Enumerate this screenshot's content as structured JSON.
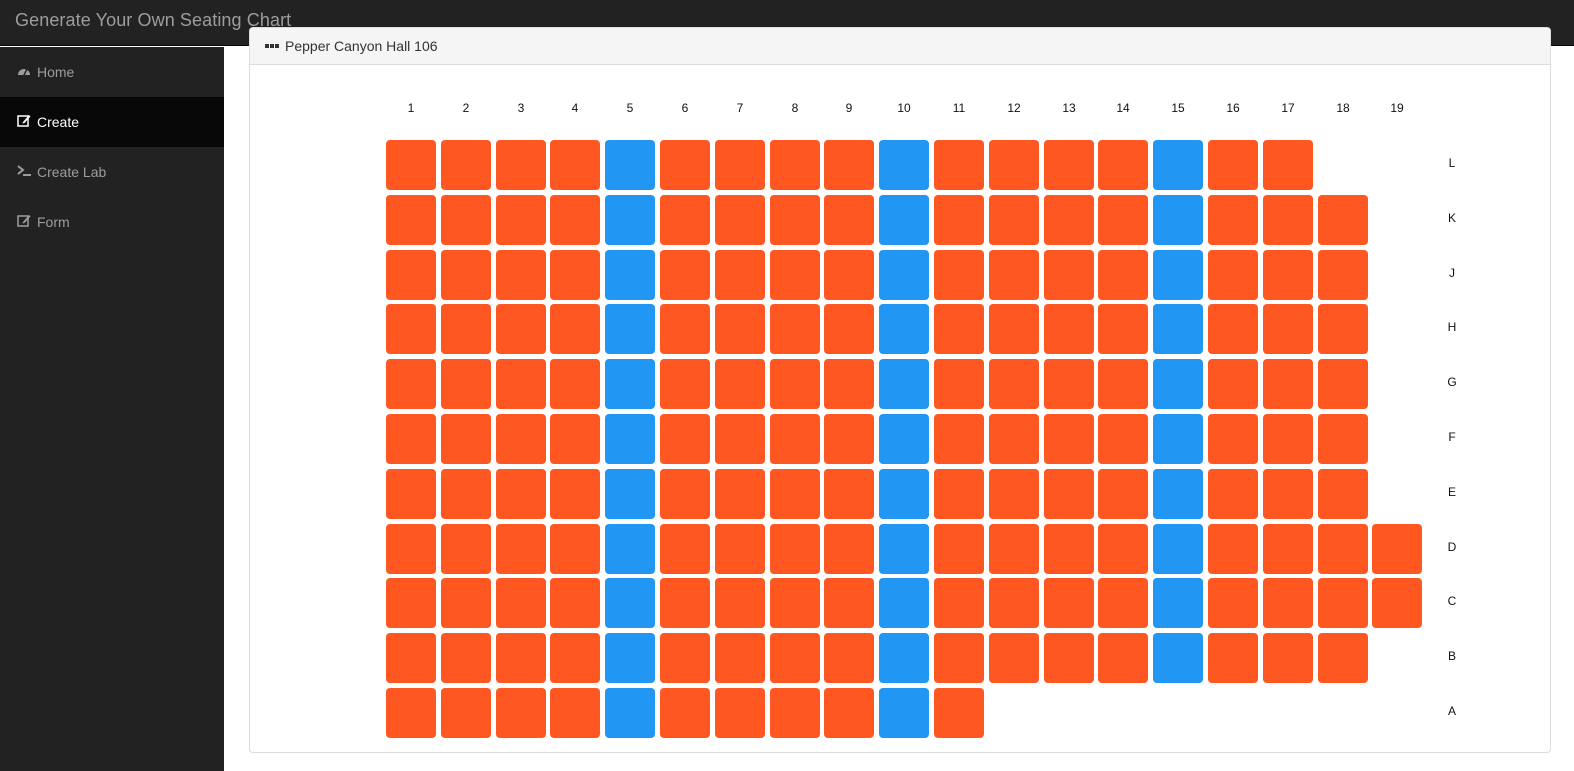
{
  "app": {
    "title": "Generate Your Own Seating Chart"
  },
  "nav": {
    "items": [
      {
        "label": "Home",
        "icon": "dashboard-icon",
        "active": false
      },
      {
        "label": "Create",
        "icon": "edit-icon",
        "active": true
      },
      {
        "label": "Create Lab",
        "icon": "terminal-icon",
        "active": false
      },
      {
        "label": "Form",
        "icon": "edit-icon",
        "active": false
      }
    ]
  },
  "panel": {
    "title": "Pepper Canyon Hall 106"
  },
  "seating": {
    "columns": [
      "1",
      "2",
      "3",
      "4",
      "5",
      "6",
      "7",
      "8",
      "9",
      "10",
      "11",
      "12",
      "13",
      "14",
      "15",
      "16",
      "17",
      "18",
      "19"
    ],
    "aisle_columns": [
      5,
      10,
      15
    ],
    "colors": {
      "occupied": "#ff5722",
      "aisle": "#2196f3"
    },
    "rows": [
      {
        "label": "L",
        "seats": 17
      },
      {
        "label": "K",
        "seats": 18
      },
      {
        "label": "J",
        "seats": 18
      },
      {
        "label": "H",
        "seats": 18
      },
      {
        "label": "G",
        "seats": 18
      },
      {
        "label": "F",
        "seats": 18
      },
      {
        "label": "E",
        "seats": 18
      },
      {
        "label": "D",
        "seats": 19
      },
      {
        "label": "C",
        "seats": 19
      },
      {
        "label": "B",
        "seats": 18
      },
      {
        "label": "A",
        "seats": 11
      }
    ]
  }
}
